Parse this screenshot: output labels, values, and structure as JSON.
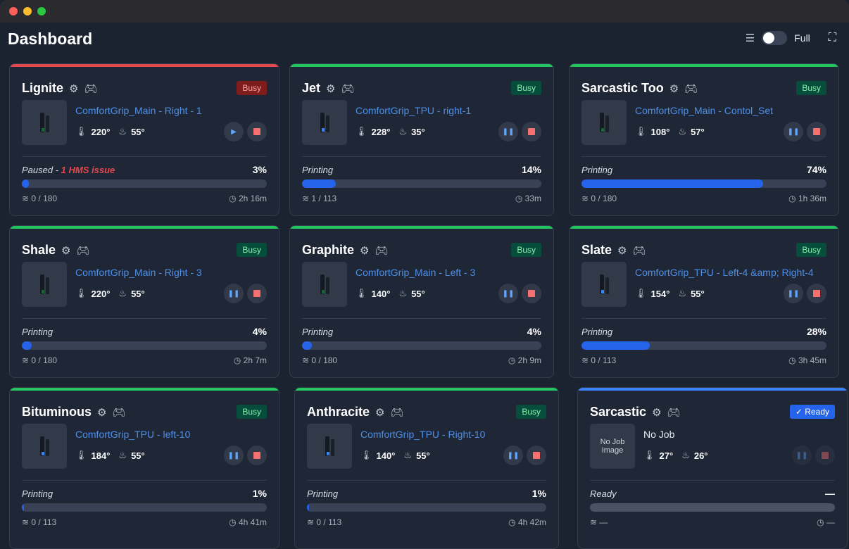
{
  "window": {
    "controls": [
      "close",
      "minimize",
      "maximize"
    ]
  },
  "header": {
    "title": "Dashboard",
    "view_toggle_label": "Full"
  },
  "colors": {
    "red": "#e5484d",
    "green": "#22c55e",
    "blue": "#3b82f6"
  },
  "printers": [
    {
      "name": "Lignite",
      "badge": "Busy",
      "badge_bg": "#7f1d1d",
      "badge_fg": "#fca5a5",
      "top": "#e5484d",
      "job": "ComfortGrip_Main - Right - 1",
      "nozzle": "220°",
      "bed": "55°",
      "state": "Paused - ",
      "hms": "1 HMS issue",
      "percent": "3%",
      "progress": 3,
      "layers": "0 / 180",
      "time": "2h 16m",
      "primary": "play"
    },
    {
      "name": "Jet",
      "badge": "Busy",
      "badge_bg": "#064e3b",
      "badge_fg": "#86efac",
      "top": "#22c55e",
      "job": "ComfortGrip_TPU - right-1",
      "nozzle": "228°",
      "bed": "35°",
      "state": "Printing",
      "percent": "14%",
      "progress": 14,
      "layers": "1 / 113",
      "time": "33m",
      "primary": "pause"
    },
    {
      "name": "Sarcastic Too",
      "badge": "Busy",
      "badge_bg": "#064e3b",
      "badge_fg": "#86efac",
      "top": "#22c55e",
      "job": "ComfortGrip_Main - Contol_Set",
      "nozzle": "108°",
      "bed": "57°",
      "state": "Printing",
      "percent": "74%",
      "progress": 74,
      "layers": "0 / 180",
      "time": "1h 36m",
      "primary": "pause"
    },
    {
      "name": "Shale",
      "badge": "Busy",
      "badge_bg": "#064e3b",
      "badge_fg": "#86efac",
      "top": "#22c55e",
      "job": "ComfortGrip_Main - Right - 3",
      "nozzle": "220°",
      "bed": "55°",
      "state": "Printing",
      "percent": "4%",
      "progress": 4,
      "layers": "0 / 180",
      "time": "2h 7m",
      "primary": "pause"
    },
    {
      "name": "Graphite",
      "badge": "Busy",
      "badge_bg": "#064e3b",
      "badge_fg": "#86efac",
      "top": "#22c55e",
      "job": "ComfortGrip_Main - Left - 3",
      "nozzle": "140°",
      "bed": "55°",
      "state": "Printing",
      "percent": "4%",
      "progress": 4,
      "layers": "0 / 180",
      "time": "2h 9m",
      "primary": "pause"
    },
    {
      "name": "Slate",
      "badge": "Busy",
      "badge_bg": "#064e3b",
      "badge_fg": "#86efac",
      "top": "#22c55e",
      "job": "ComfortGrip_TPU - Left-4 &amp; Right-4",
      "nozzle": "154°",
      "bed": "55°",
      "state": "Printing",
      "percent": "28%",
      "progress": 28,
      "layers": "0 / 113",
      "time": "3h 45m",
      "primary": "pause"
    },
    {
      "name": "Bituminous",
      "badge": "Busy",
      "badge_bg": "#064e3b",
      "badge_fg": "#86efac",
      "top": "#22c55e",
      "job": "ComfortGrip_TPU - left-10",
      "nozzle": "184°",
      "bed": "55°",
      "state": "Printing",
      "percent": "1%",
      "progress": 1,
      "layers": "0 / 113",
      "time": "4h 41m",
      "primary": "pause"
    },
    {
      "name": "Anthracite",
      "badge": "Busy",
      "badge_bg": "#064e3b",
      "badge_fg": "#86efac",
      "top": "#22c55e",
      "job": "ComfortGrip_TPU - Right-10",
      "nozzle": "140°",
      "bed": "55°",
      "state": "Printing",
      "percent": "1%",
      "progress": 1,
      "layers": "0 / 113",
      "time": "4h 42m",
      "primary": "pause"
    },
    {
      "name": "Sarcastic",
      "badge": "✓ Ready",
      "badge_bg": "#2563eb",
      "badge_fg": "#ffffff",
      "top": "#3b82f6",
      "job": "No Job",
      "thumb_text": "No Job Image",
      "nozzle": "27°",
      "bed": "26°",
      "state": "Ready",
      "percent": "—",
      "progress": 0,
      "layers": "—",
      "time": "—",
      "primary": "pause",
      "disabled": true
    }
  ]
}
